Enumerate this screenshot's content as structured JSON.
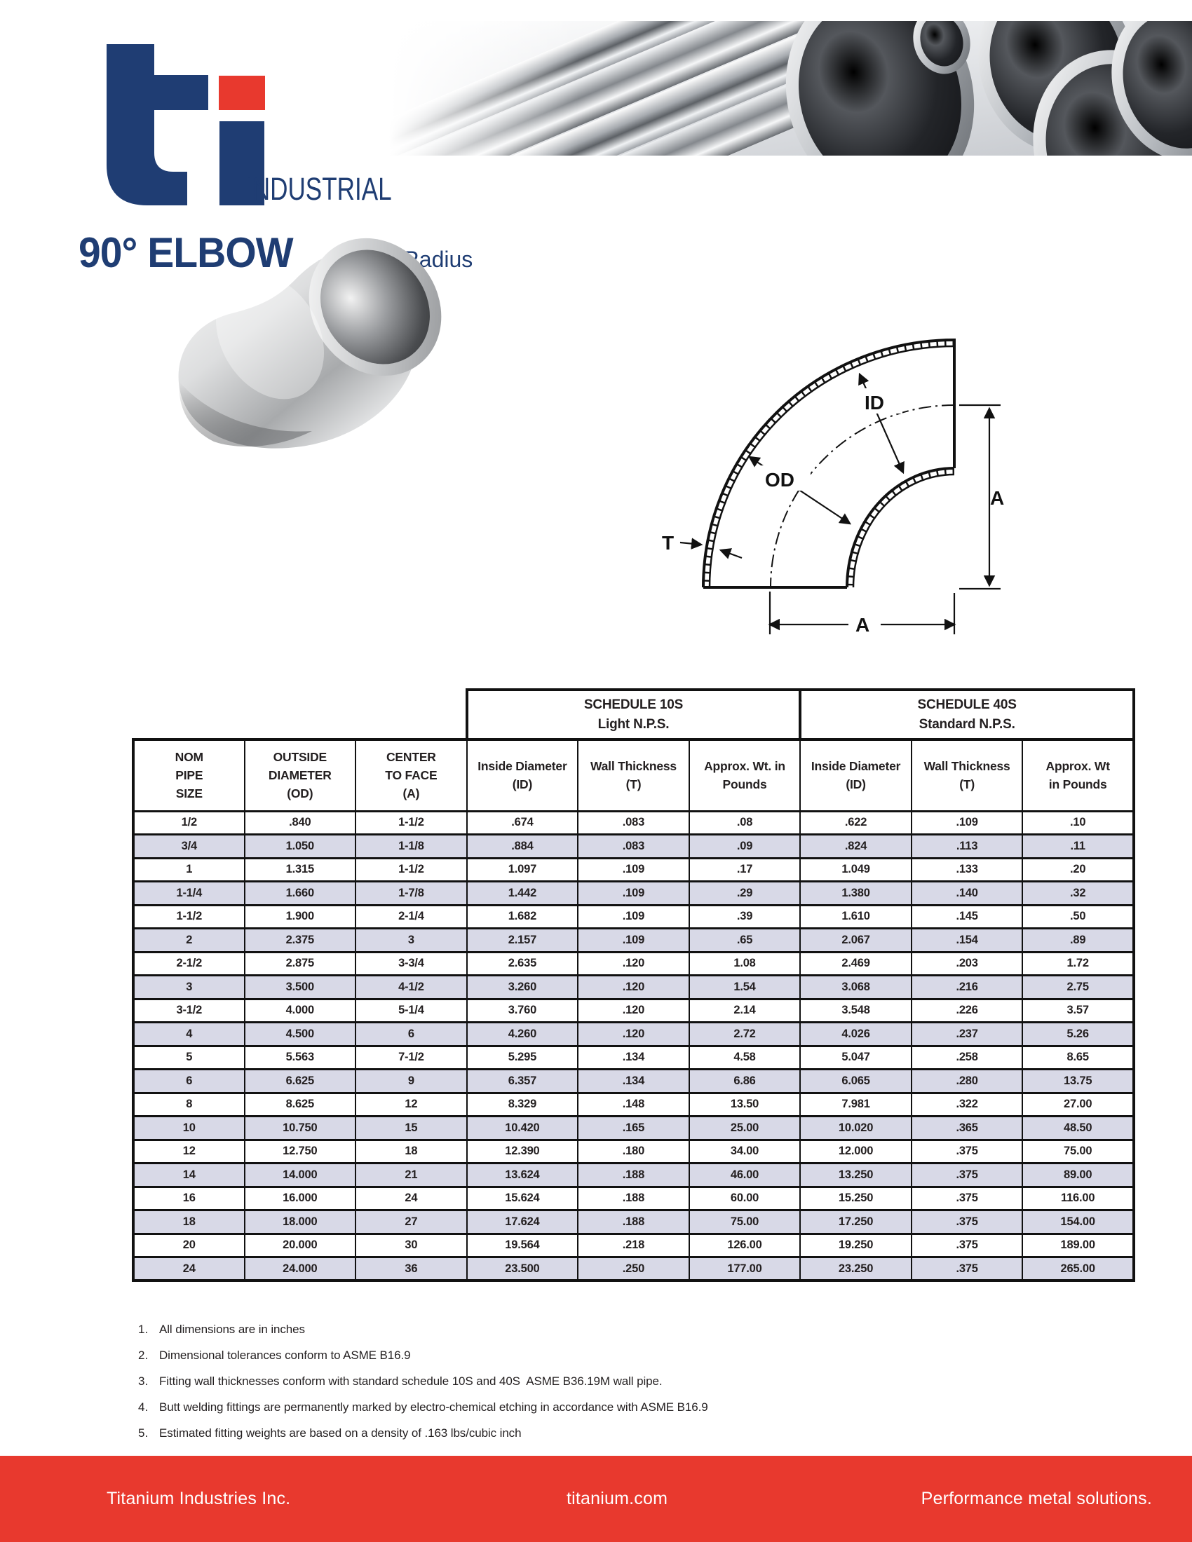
{
  "brand": {
    "logo_name": "ti-logo",
    "subtitle": "INDUSTRIAL",
    "navy": "#1f3d73",
    "red": "#e8392e"
  },
  "header": {
    "title": "90° ELBOW",
    "subtitle": "— Long Radius"
  },
  "diagram": {
    "inside_diameter_label": "ID",
    "outside_diameter_label": "OD",
    "wall_thickness_label": "T",
    "center_to_face_vertical_label": "A",
    "center_to_face_horizontal_label": "A"
  },
  "table": {
    "schedule_headers": [
      {
        "title": "SCHEDULE 10S",
        "subtitle": "Light N.P.S."
      },
      {
        "title": "SCHEDULE 40S",
        "subtitle": "Standard N.P.S."
      }
    ],
    "columns": [
      [
        "NOM",
        "PIPE",
        "SIZE"
      ],
      [
        "OUTSIDE",
        "DIAMETER",
        "(OD)"
      ],
      [
        "CENTER",
        "TO FACE",
        "(A)"
      ],
      [
        "Inside Diameter",
        "(ID)"
      ],
      [
        "Wall Thickness",
        "(T)"
      ],
      [
        "Approx. Wt. in",
        "Pounds"
      ],
      [
        "Inside Diameter",
        "(ID)"
      ],
      [
        "Wall Thickness",
        "(T)"
      ],
      [
        "Approx. Wt",
        "in Pounds"
      ]
    ],
    "rows": [
      [
        "1/2",
        ".840",
        "1-1/2",
        ".674",
        ".083",
        ".08",
        ".622",
        ".109",
        ".10"
      ],
      [
        "3/4",
        "1.050",
        "1-1/8",
        ".884",
        ".083",
        ".09",
        ".824",
        ".113",
        ".11"
      ],
      [
        "1",
        "1.315",
        "1-1/2",
        "1.097",
        ".109",
        ".17",
        "1.049",
        ".133",
        ".20"
      ],
      [
        "1-1/4",
        "1.660",
        "1-7/8",
        "1.442",
        ".109",
        ".29",
        "1.380",
        ".140",
        ".32"
      ],
      [
        "1-1/2",
        "1.900",
        "2-1/4",
        "1.682",
        ".109",
        ".39",
        "1.610",
        ".145",
        ".50"
      ],
      [
        "2",
        "2.375",
        "3",
        "2.157",
        ".109",
        ".65",
        "2.067",
        ".154",
        ".89"
      ],
      [
        "2-1/2",
        "2.875",
        "3-3/4",
        "2.635",
        ".120",
        "1.08",
        "2.469",
        ".203",
        "1.72"
      ],
      [
        "3",
        "3.500",
        "4-1/2",
        "3.260",
        ".120",
        "1.54",
        "3.068",
        ".216",
        "2.75"
      ],
      [
        "3-1/2",
        "4.000",
        "5-1/4",
        "3.760",
        ".120",
        "2.14",
        "3.548",
        ".226",
        "3.57"
      ],
      [
        "4",
        "4.500",
        "6",
        "4.260",
        ".120",
        "2.72",
        "4.026",
        ".237",
        "5.26"
      ],
      [
        "5",
        "5.563",
        "7-1/2",
        "5.295",
        ".134",
        "4.58",
        "5.047",
        ".258",
        "8.65"
      ],
      [
        "6",
        "6.625",
        "9",
        "6.357",
        ".134",
        "6.86",
        "6.065",
        ".280",
        "13.75"
      ],
      [
        "8",
        "8.625",
        "12",
        "8.329",
        ".148",
        "13.50",
        "7.981",
        ".322",
        "27.00"
      ],
      [
        "10",
        "10.750",
        "15",
        "10.420",
        ".165",
        "25.00",
        "10.020",
        ".365",
        "48.50"
      ],
      [
        "12",
        "12.750",
        "18",
        "12.390",
        ".180",
        "34.00",
        "12.000",
        ".375",
        "75.00"
      ],
      [
        "14",
        "14.000",
        "21",
        "13.624",
        ".188",
        "46.00",
        "13.250",
        ".375",
        "89.00"
      ],
      [
        "16",
        "16.000",
        "24",
        "15.624",
        ".188",
        "60.00",
        "15.250",
        ".375",
        "116.00"
      ],
      [
        "18",
        "18.000",
        "27",
        "17.624",
        ".188",
        "75.00",
        "17.250",
        ".375",
        "154.00"
      ],
      [
        "20",
        "20.000",
        "30",
        "19.564",
        ".218",
        "126.00",
        "19.250",
        ".375",
        "189.00"
      ],
      [
        "24",
        "24.000",
        "36",
        "23.500",
        ".250",
        "177.00",
        "23.250",
        ".375",
        "265.00"
      ]
    ],
    "row_alt_color": "#d8d9e7"
  },
  "notes": [
    "All dimensions are in inches",
    "Dimensional tolerances conform to ASME B16.9",
    "Fitting wall thicknesses conform with standard schedule 10S and 40S  ASME B36.19M wall pipe.",
    "Butt welding fittings are permanently marked by electro-chemical etching in accordance with ASME B16.9",
    "Estimated fitting weights are based on a density of .163 lbs/cubic inch"
  ],
  "footer": {
    "left": "Titanium Industries Inc.",
    "center": "titanium.com",
    "right": "Performance metal solutions."
  }
}
